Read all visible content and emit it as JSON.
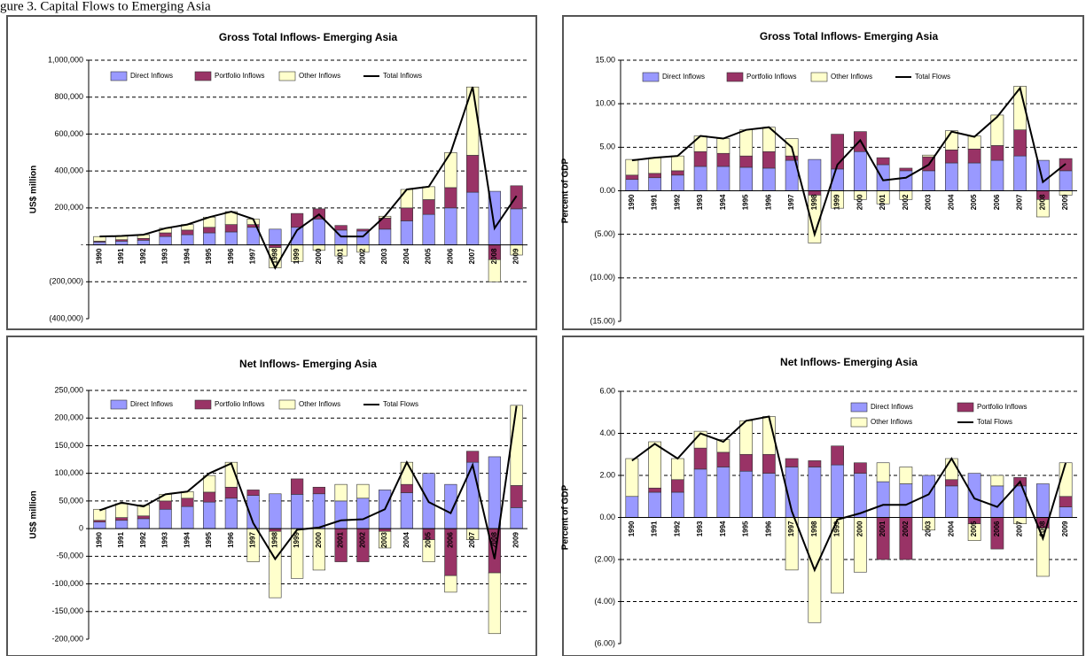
{
  "caption": "gure 3. Capital Flows to Emerging Asia",
  "chart_data": [
    {
      "type": "bar",
      "stacked": true,
      "title": "Gross Total Inflows- Emerging Asia",
      "ylabel": "US$ million",
      "categories": [
        "1990",
        "1991",
        "1992",
        "1993",
        "1994",
        "1995",
        "1996",
        "1997",
        "1998",
        "1999",
        "2000",
        "2001",
        "2002",
        "2003",
        "2004",
        "2005",
        "2006",
        "2007",
        "2008",
        "2009"
      ],
      "series": [
        {
          "name": "Direct Inflows",
          "type": "bar",
          "color": "#9999ff",
          "values": [
            15000,
            20000,
            25000,
            45000,
            55000,
            65000,
            70000,
            95000,
            85000,
            95000,
            140000,
            80000,
            75000,
            85000,
            130000,
            165000,
            200000,
            285000,
            290000,
            195000
          ]
        },
        {
          "name": "Portfolio Inflows",
          "type": "bar",
          "color": "#993366",
          "values": [
            5000,
            8000,
            10000,
            20000,
            25000,
            30000,
            40000,
            15000,
            -15000,
            75000,
            55000,
            25000,
            10000,
            60000,
            70000,
            80000,
            110000,
            200000,
            -80000,
            125000
          ]
        },
        {
          "name": "Other Inflows",
          "type": "bar",
          "color": "#ffffcc",
          "values": [
            25000,
            20000,
            20000,
            25000,
            30000,
            55000,
            70000,
            30000,
            -110000,
            -90000,
            -30000,
            -60000,
            -40000,
            10000,
            100000,
            70000,
            190000,
            370000,
            -120000,
            -55000
          ]
        },
        {
          "name": "Total Inflows",
          "type": "line",
          "color": "#000000",
          "values": [
            45000,
            48000,
            55000,
            90000,
            110000,
            150000,
            180000,
            140000,
            -125000,
            80000,
            165000,
            45000,
            45000,
            155000,
            300000,
            315000,
            500000,
            855000,
            90000,
            265000
          ]
        }
      ],
      "ylim": [
        -400000,
        1000000
      ],
      "yticks": [
        {
          "value": -400000,
          "label": "(400,000)"
        },
        {
          "value": -200000,
          "label": "(200,000)"
        },
        {
          "value": 0,
          "label": "-"
        },
        {
          "value": 200000,
          "label": "200,000"
        },
        {
          "value": 400000,
          "label": "400,000"
        },
        {
          "value": 600000,
          "label": "600,000"
        },
        {
          "value": 800000,
          "label": "800,000"
        },
        {
          "value": 1000000,
          "label": "1,000,000"
        }
      ],
      "grid": true,
      "negative_label_color": "#cc0000"
    },
    {
      "type": "bar",
      "stacked": true,
      "title": "Gross Total Inflows- Emerging Asia",
      "ylabel": "Percent of GDP",
      "categories": [
        "1990",
        "1991",
        "1992",
        "1993",
        "1994",
        "1995",
        "1996",
        "1997",
        "1998",
        "1999",
        "2000",
        "2001",
        "2002",
        "2003",
        "2004",
        "2005",
        "2006",
        "2007",
        "2008",
        "2009"
      ],
      "series": [
        {
          "name": "Direct Inflows",
          "type": "bar",
          "color": "#9999ff",
          "values": [
            1.3,
            1.5,
            1.8,
            2.8,
            2.8,
            2.7,
            2.6,
            3.5,
            3.6,
            2.5,
            4.5,
            3.0,
            2.3,
            2.3,
            3.2,
            3.2,
            3.5,
            4.0,
            3.5,
            2.3
          ]
        },
        {
          "name": "Portfolio Inflows",
          "type": "bar",
          "color": "#993366",
          "values": [
            0.5,
            0.5,
            0.5,
            1.7,
            1.5,
            1.3,
            1.9,
            0.5,
            -0.5,
            4.0,
            2.3,
            0.8,
            0.3,
            1.6,
            1.5,
            1.6,
            1.7,
            3.0,
            -1.0,
            1.4
          ]
        },
        {
          "name": "Other Inflows",
          "type": "bar",
          "color": "#ffffcc",
          "values": [
            1.8,
            1.8,
            1.7,
            1.8,
            1.7,
            3.0,
            2.8,
            2.0,
            -5.5,
            -2.0,
            -1.0,
            -1.5,
            -1.0,
            0.2,
            2.2,
            1.5,
            3.5,
            5.0,
            -2.0,
            -0.5
          ]
        },
        {
          "name": "Total Flows",
          "type": "line",
          "color": "#000000",
          "values": [
            3.5,
            3.8,
            4.0,
            6.3,
            6.0,
            7.0,
            7.3,
            5.0,
            -5.0,
            3.0,
            5.8,
            1.2,
            1.5,
            3.0,
            6.8,
            6.2,
            8.5,
            11.8,
            1.0,
            3.1
          ]
        }
      ],
      "ylim": [
        -15,
        15
      ],
      "yticks": [
        {
          "value": -15,
          "label": "(15.00)"
        },
        {
          "value": -10,
          "label": "(10.00)"
        },
        {
          "value": -5,
          "label": "(5.00)"
        },
        {
          "value": 0,
          "label": "0.00"
        },
        {
          "value": 5,
          "label": "5.00"
        },
        {
          "value": 10,
          "label": "10.00"
        },
        {
          "value": 15,
          "label": "15.00"
        }
      ],
      "grid": true,
      "negative_label_color": "#cc0000"
    },
    {
      "type": "bar",
      "stacked": true,
      "title": "Net Inflows- Emerging Asia",
      "ylabel": "US$ million",
      "categories": [
        "1990",
        "1991",
        "1992",
        "1993",
        "1994",
        "1995",
        "1996",
        "1997",
        "1998",
        "1999",
        "2000",
        "2001",
        "2002",
        "2003",
        "2004",
        "2005",
        "2006",
        "2007",
        "2008",
        "2009"
      ],
      "series": [
        {
          "name": "Direct Inflows",
          "type": "bar",
          "color": "#9999ff",
          "values": [
            12000,
            15000,
            18000,
            35000,
            40000,
            48000,
            55000,
            60000,
            63000,
            62000,
            63000,
            50000,
            55000,
            70000,
            65000,
            100000,
            80000,
            120000,
            130000,
            38000
          ]
        },
        {
          "name": "Portfolio Inflows",
          "type": "bar",
          "color": "#993366",
          "values": [
            3000,
            5000,
            5000,
            15000,
            15000,
            18000,
            20000,
            10000,
            -5000,
            28000,
            12000,
            -60000,
            -60000,
            -5000,
            15000,
            -20000,
            -85000,
            20000,
            -80000,
            40000
          ]
        },
        {
          "name": "Other Inflows",
          "type": "bar",
          "color": "#ffffcc",
          "values": [
            20000,
            25000,
            20000,
            12000,
            12000,
            30000,
            45000,
            -60000,
            -120000,
            -90000,
            -75000,
            30000,
            25000,
            -30000,
            40000,
            -40000,
            -30000,
            -20000,
            -110000,
            145000
          ]
        },
        {
          "name": "Total Flows",
          "type": "line",
          "color": "#000000",
          "values": [
            33000,
            47000,
            40000,
            62000,
            67000,
            100000,
            118000,
            10000,
            -55000,
            -2000,
            2000,
            15000,
            17000,
            35000,
            120000,
            48000,
            28000,
            115000,
            -55000,
            222000
          ]
        }
      ],
      "ylim": [
        -200000,
        250000
      ],
      "yticks": [
        {
          "value": -200000,
          "label": "-200,000"
        },
        {
          "value": -150000,
          "label": "-150,000"
        },
        {
          "value": -100000,
          "label": "-100,000"
        },
        {
          "value": -50000,
          "label": "-50,000"
        },
        0,
        {
          "value": 50000,
          "label": "50,000"
        },
        {
          "value": 100000,
          "label": "100,000"
        },
        {
          "value": 150000,
          "label": "150,000"
        },
        {
          "value": 200000,
          "label": "200,000"
        },
        {
          "value": 250000,
          "label": "250,000"
        }
      ],
      "grid": true
    },
    {
      "type": "bar",
      "stacked": true,
      "title": "Net Inflows- Emerging Asia",
      "ylabel": "Percent of GDP",
      "categories": [
        "1990",
        "1991",
        "1992",
        "1993",
        "1994",
        "1995",
        "1996",
        "1997",
        "1998",
        "1999",
        "2000",
        "2001",
        "2002",
        "2003",
        "2004",
        "2005",
        "2006",
        "2007",
        "2008",
        "2009"
      ],
      "series": [
        {
          "name": "Direct Inflows",
          "type": "bar",
          "color": "#9999ff",
          "values": [
            1.0,
            1.2,
            1.2,
            2.3,
            2.4,
            2.2,
            2.1,
            2.4,
            2.4,
            2.5,
            2.1,
            1.7,
            1.6,
            2.0,
            1.5,
            2.1,
            1.5,
            1.5,
            1.6,
            0.5
          ]
        },
        {
          "name": "Portfolio Inflows",
          "type": "bar",
          "color": "#993366",
          "values": [
            0,
            0.2,
            0.6,
            1.0,
            0.7,
            0.8,
            0.9,
            0.4,
            0.3,
            0.9,
            0.5,
            -2.0,
            -2.0,
            0,
            0.3,
            -0.3,
            -1.5,
            0.4,
            -0.5,
            0.5
          ]
        },
        {
          "name": "Other Inflows",
          "type": "bar",
          "color": "#ffffcc",
          "values": [
            1.8,
            2.2,
            1.0,
            0.8,
            0.6,
            1.6,
            1.8,
            -2.5,
            -5.0,
            -3.6,
            -2.6,
            0.9,
            0.8,
            -0.6,
            1.0,
            -0.8,
            0.5,
            -0.3,
            -2.3,
            1.6
          ]
        },
        {
          "name": "Total Flows",
          "type": "line",
          "color": "#000000",
          "values": [
            2.7,
            3.5,
            2.8,
            4.0,
            3.6,
            4.6,
            4.8,
            0.3,
            -2.5,
            -0.1,
            0.2,
            0.6,
            0.6,
            1.1,
            2.8,
            0.9,
            0.5,
            1.7,
            -1.0,
            2.6
          ]
        }
      ],
      "ylim": [
        -6,
        6
      ],
      "yticks": [
        {
          "value": -6,
          "label": "(6.00)"
        },
        {
          "value": -4,
          "label": "(4.00)"
        },
        {
          "value": -2,
          "label": "(2.00)"
        },
        {
          "value": 0,
          "label": "0.00"
        },
        {
          "value": 2,
          "label": "2.00"
        },
        {
          "value": 4,
          "label": "4.00"
        },
        {
          "value": 6,
          "label": "6.00"
        }
      ],
      "grid": true,
      "negative_label_color": "#cc0000",
      "legend_columns": 2
    }
  ]
}
